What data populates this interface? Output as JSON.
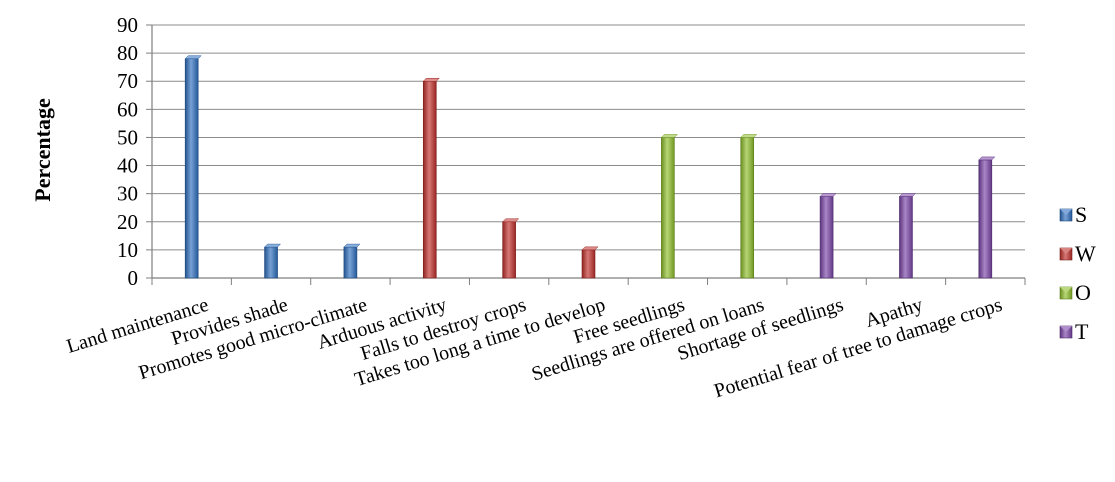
{
  "chart_data": {
    "type": "bar",
    "title": "",
    "xlabel": "",
    "ylabel": "Percentage",
    "ylim": [
      0,
      90
    ],
    "yticks": [
      0,
      10,
      20,
      30,
      40,
      50,
      60,
      70,
      80,
      90
    ],
    "grid": true,
    "legend_position": "right",
    "categories": [
      "Land maintenance",
      "Provides shade",
      "Promotes good micro-climate",
      "Arduous activity",
      "Falls to destroy crops",
      "Takes too long a time to develop",
      "Free seedlings",
      "Seedlings are offered on loans",
      "Shortage of seedlings",
      "Apathy",
      "Potential fear of tree to damage crops"
    ],
    "series": [
      {
        "name": "S",
        "color": "#2e6fbf",
        "values": [
          78,
          11,
          11,
          null,
          null,
          null,
          null,
          null,
          null,
          null,
          null
        ]
      },
      {
        "name": "W",
        "color": "#c0302c",
        "values": [
          null,
          null,
          null,
          70,
          20,
          10,
          null,
          null,
          null,
          null,
          null
        ]
      },
      {
        "name": "O",
        "color": "#8fbe2a",
        "values": [
          null,
          null,
          null,
          null,
          null,
          null,
          50,
          50,
          null,
          null,
          null
        ]
      },
      {
        "name": "T",
        "color": "#7a45a8",
        "values": [
          null,
          null,
          null,
          null,
          null,
          null,
          null,
          null,
          29,
          29,
          42
        ]
      }
    ]
  }
}
